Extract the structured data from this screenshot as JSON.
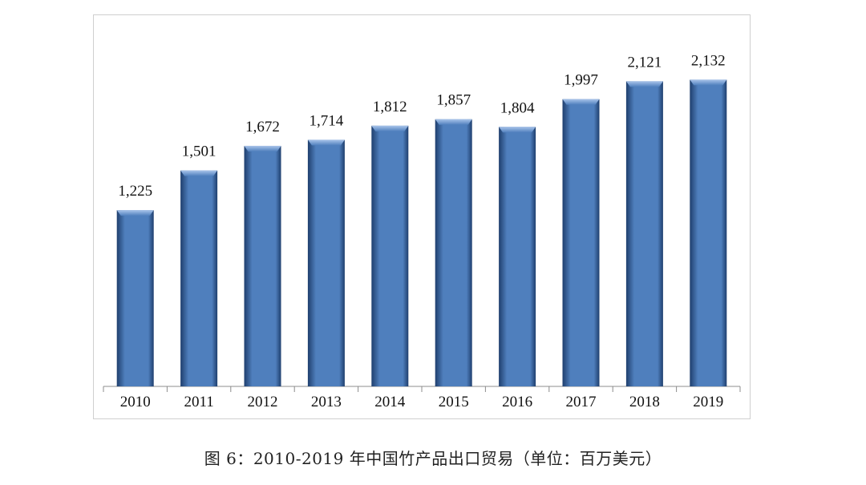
{
  "caption": "图 6：2010-2019 年中国竹产品出口贸易（单位：百万美元）",
  "chart_data": {
    "type": "bar",
    "categories": [
      "2010",
      "2011",
      "2012",
      "2013",
      "2014",
      "2015",
      "2016",
      "2017",
      "2018",
      "2019"
    ],
    "values": [
      1225,
      1501,
      1672,
      1714,
      1812,
      1857,
      1804,
      1997,
      2121,
      2132
    ],
    "value_labels": [
      "1,225",
      "1,501",
      "1,672",
      "1,714",
      "1,812",
      "1,857",
      "1,804",
      "1,997",
      "2,121",
      "2,132"
    ],
    "title": "",
    "xlabel": "",
    "ylabel": "",
    "ylim": [
      0,
      2580
    ],
    "grid": false,
    "legend": "none",
    "colors": {
      "bar": "#4f7fbd",
      "bar_dark": "#1f3f6e",
      "bar_light": "#a9c4ea"
    }
  }
}
